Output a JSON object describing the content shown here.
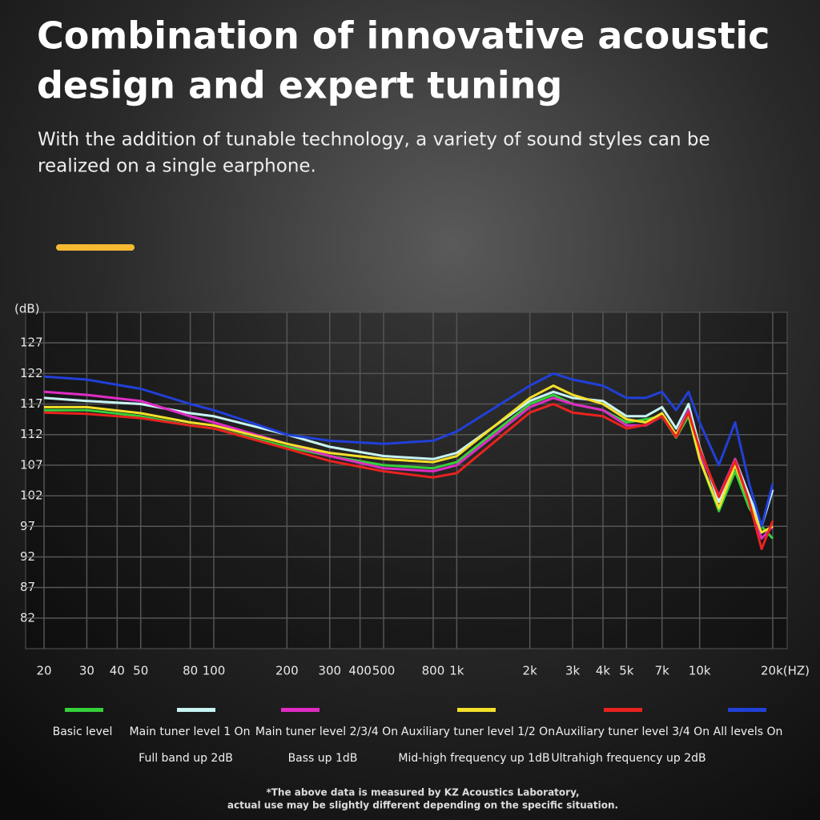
{
  "header": {
    "title": [
      "Combination of innovative acoustic",
      "design and expert tuning"
    ],
    "subtitle": [
      "With the addition of tunable technology, a variety of sound styles can be",
      "realized on a single earphone."
    ]
  },
  "chart_data": {
    "type": "line",
    "y_label": "(dB)",
    "log_x": true,
    "grid": true,
    "x": [
      20,
      30,
      50,
      80,
      100,
      200,
      300,
      500,
      800,
      1000,
      2000,
      2500,
      3000,
      4000,
      5000,
      6000,
      7000,
      8000,
      9000,
      10000,
      12000,
      14000,
      16000,
      18000,
      20000
    ],
    "xlim": [
      20,
      20000
    ],
    "xticks": [
      20,
      30,
      40,
      50,
      80,
      100,
      200,
      300,
      400,
      500,
      800,
      {
        "value": 1000,
        "label": "1k"
      },
      {
        "value": 2000,
        "label": "2k"
      },
      {
        "value": 3000,
        "label": "3k"
      },
      {
        "value": 4000,
        "label": "4k"
      },
      {
        "value": 5000,
        "label": "5k"
      },
      {
        "value": 7000,
        "label": "7k"
      },
      {
        "value": 10000,
        "label": "10k"
      },
      {
        "value": 20000,
        "label": "20k(HZ)"
      }
    ],
    "ylim": [
      77,
      132
    ],
    "yticks": [
      127,
      122,
      117,
      112,
      107,
      102,
      97,
      92,
      87,
      82
    ],
    "series": [
      {
        "name": "Basic level",
        "color": "#35d03a",
        "values": [
          116,
          116,
          115,
          113.5,
          113,
          110,
          108.5,
          107,
          106.5,
          107.5,
          117,
          118.5,
          117,
          116,
          114,
          114.5,
          115,
          111.5,
          115,
          108,
          99.5,
          106,
          100,
          97,
          95
        ]
      },
      {
        "name": "Main tuner level 1 On",
        "note": "Full band up 2dB",
        "color": "#c8f4f4",
        "values": [
          118,
          117.5,
          117,
          115.5,
          115,
          112,
          110,
          108.5,
          108,
          109,
          117.5,
          119,
          118,
          117.5,
          115,
          115,
          116.5,
          113,
          117,
          110,
          101,
          108,
          102,
          97,
          103
        ]
      },
      {
        "name": "Main tuner level 2/3/4 On",
        "note": "Bass up 1dB",
        "color": "#e02cc4",
        "values": [
          119,
          118.5,
          117.5,
          115,
          114,
          110.5,
          108.5,
          106.5,
          106,
          107,
          116.5,
          118,
          117,
          116,
          113.5,
          113.5,
          115,
          112,
          116,
          109,
          102,
          108,
          101,
          95,
          97
        ]
      },
      {
        "name": "Auxiliary tuner level 1/2 On",
        "note": "Mid-high frequency up 1dB",
        "color": "#f4e02a",
        "values": [
          116.5,
          116.5,
          115.5,
          114,
          113.5,
          110.5,
          109,
          108,
          107.5,
          108.5,
          118,
          120,
          118.5,
          117,
          114.5,
          114,
          115.5,
          112,
          115.5,
          108,
          100,
          107,
          101,
          96,
          97
        ]
      },
      {
        "name": "Auxiliary tuner level 3/4 On",
        "note": "Ultrahigh frequency up 2dB",
        "color": "#e8231f",
        "values": [
          115.6,
          115.4,
          114.7,
          113.5,
          113,
          109.7,
          107.7,
          106,
          105,
          105.7,
          115.6,
          117,
          115.6,
          115,
          113,
          113.6,
          115,
          111.6,
          115.6,
          109.7,
          101.8,
          107.7,
          101,
          93.3,
          97.9
        ]
      },
      {
        "name": "All levels On",
        "color": "#2140d8",
        "values": [
          121.5,
          121,
          119.5,
          117,
          116,
          112,
          111,
          110.5,
          111,
          112.5,
          120,
          122,
          121,
          120,
          118,
          118,
          119,
          116,
          119,
          114,
          107,
          114,
          104,
          97,
          104
        ]
      }
    ]
  },
  "footnote": [
    "*The above data is measured by KZ Acoustics Laboratory,",
    "actual use may be slightly different depending on the specific situation."
  ]
}
